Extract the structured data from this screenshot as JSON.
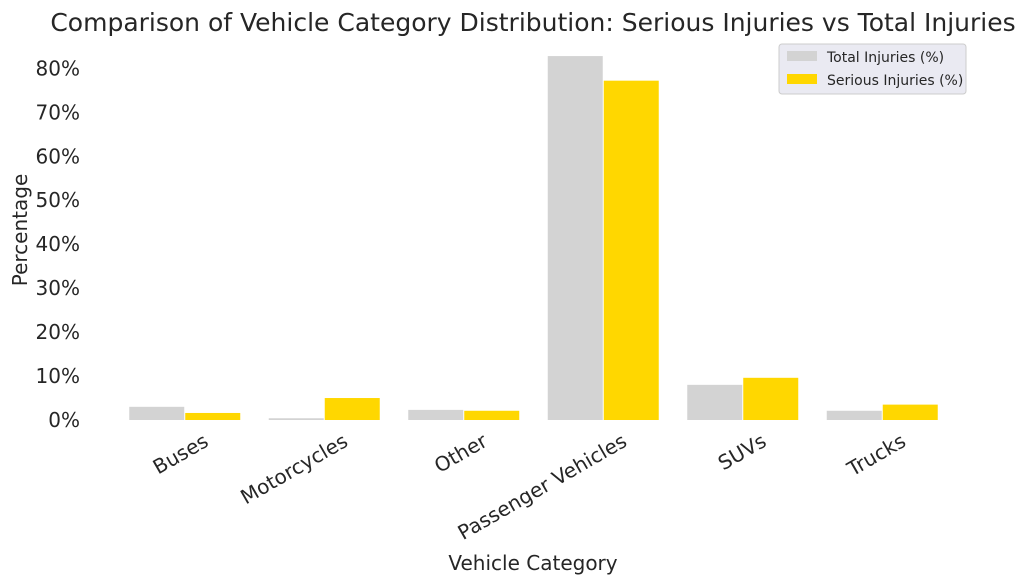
{
  "chart_data": {
    "type": "bar",
    "title": "Comparison of Vehicle Category Distribution: Serious Injuries vs Total Injuries",
    "xlabel": "Vehicle Category",
    "ylabel": "Percentage",
    "categories": [
      "Buses",
      "Motorcycles",
      "Other",
      "Passenger Vehicles",
      "SUVs",
      "Trucks"
    ],
    "series": [
      {
        "name": "Total Injuries (%)",
        "color": "#d3d3d3",
        "values": [
          3.0,
          0.4,
          2.3,
          82.8,
          8.0,
          2.1
        ]
      },
      {
        "name": "Serious Injuries (%)",
        "color": "#ffd700",
        "values": [
          1.6,
          5.0,
          2.1,
          77.2,
          9.6,
          3.5
        ]
      }
    ],
    "ylim": [
      0,
      86
    ],
    "yticks": [
      0,
      10,
      20,
      30,
      40,
      50,
      60,
      70,
      80
    ],
    "ytick_labels": [
      "0%",
      "10%",
      "20%",
      "30%",
      "40%",
      "50%",
      "60%",
      "70%",
      "80%"
    ],
    "xtick_rotation": 30,
    "grid": false,
    "legend_position": "top-right"
  }
}
